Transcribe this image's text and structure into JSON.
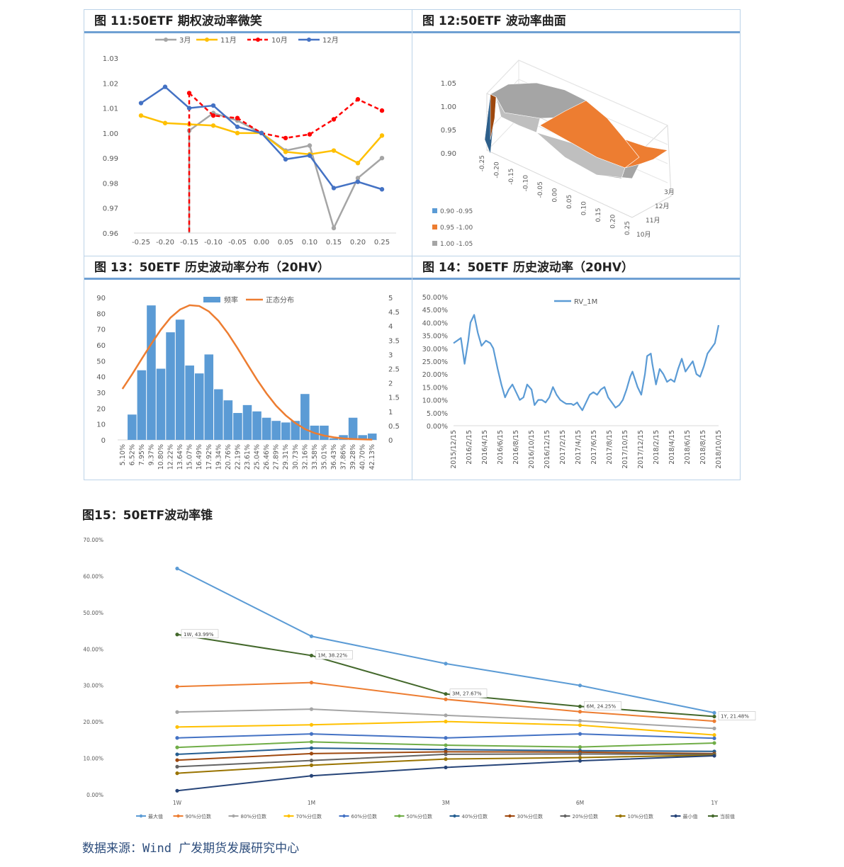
{
  "figure11": {
    "title": "图 11:50ETF 期权波动率微笑",
    "chart_data": {
      "type": "line",
      "x": [
        -0.25,
        -0.2,
        -0.15,
        -0.1,
        -0.05,
        0.0,
        0.05,
        0.1,
        0.15,
        0.2,
        0.25
      ],
      "x_tick_labels": [
        "-0.25",
        "-0.20",
        "-0.15",
        "-0.10",
        "-0.05",
        "0.00",
        "0.05",
        "0.10",
        "0.15",
        "0.20",
        "0.25"
      ],
      "ylim": [
        0.96,
        1.03
      ],
      "y_tick_labels": [
        "0.96",
        "0.97",
        "0.98",
        "0.99",
        "1.00",
        "1.01",
        "1.02",
        "1.03"
      ],
      "series": [
        {
          "name": "3月",
          "color": "#a5a5a5",
          "dash": false,
          "values": [
            null,
            null,
            1.001,
            1.008,
            1.005,
            1.0,
            0.993,
            0.995,
            0.962,
            0.982,
            0.99
          ]
        },
        {
          "name": "11月",
          "color": "#ffc000",
          "dash": false,
          "values": [
            1.007,
            1.004,
            1.0035,
            1.003,
            1.0,
            1.0,
            0.9925,
            0.9915,
            0.993,
            0.988,
            0.999
          ]
        },
        {
          "name": "10月",
          "color": "#ff0000",
          "dash": true,
          "values": [
            null,
            null,
            1.016,
            1.007,
            1.006,
            1.0,
            0.998,
            0.9995,
            1.0055,
            1.0135,
            1.009
          ]
        },
        {
          "name": "12月",
          "color": "#4472c4",
          "dash": false,
          "values": [
            1.012,
            1.0185,
            1.01,
            1.011,
            1.0025,
            1.0,
            0.9895,
            0.991,
            0.978,
            0.9805,
            0.9775
          ]
        }
      ]
    }
  },
  "figure12": {
    "title": "图 12:50ETF 波动率曲面",
    "chart_data": {
      "type": "surface",
      "z_tick_labels": [
        "1.05",
        "1.00",
        "0.95",
        "0.90"
      ],
      "x_tick_labels": [
        "-0.25",
        "-0.20",
        "-0.15",
        "-0.10",
        "-0.05",
        "0.00",
        "0.05",
        "0.10",
        "0.15",
        "0.20",
        "0.25"
      ],
      "y_tick_labels": [
        "3月",
        "12月",
        "11月",
        "10月"
      ],
      "legend": [
        {
          "label": "0.90 -0.95",
          "color": "#5b9bd5"
        },
        {
          "label": "0.95 -1.00",
          "color": "#ed7d31"
        },
        {
          "label": "1.00 -1.05",
          "color": "#a5a5a5"
        }
      ]
    }
  },
  "figure13": {
    "title": "图 13：50ETF 历史波动率分布（20HV）",
    "chart_data": {
      "type": "bar",
      "categories": [
        "5.10%",
        "6.52%",
        "7.95%",
        "9.37%",
        "10.80%",
        "12.22%",
        "13.64%",
        "15.07%",
        "16.49%",
        "17.92%",
        "19.34%",
        "20.76%",
        "22.19%",
        "23.61%",
        "25.04%",
        "26.46%",
        "27.89%",
        "29.31%",
        "30.73%",
        "32.16%",
        "33.58%",
        "35.01%",
        "36.43%",
        "37.86%",
        "39.28%",
        "40.70%",
        "42.13%"
      ],
      "series": [
        {
          "name": "频率",
          "axis": "left",
          "color": "#5b9bd5",
          "values": [
            0,
            16,
            44,
            85,
            45,
            68,
            76,
            47,
            42,
            54,
            32,
            25,
            17,
            22,
            18,
            14,
            12,
            11,
            12,
            29,
            9,
            9,
            1,
            3,
            14,
            3,
            4
          ]
        },
        {
          "name": "正态分布",
          "axis": "right",
          "color": "#ed7d31",
          "values": [
            1.79,
            2.3,
            2.84,
            3.37,
            3.87,
            4.29,
            4.58,
            4.73,
            4.7,
            4.51,
            4.18,
            3.73,
            3.21,
            2.66,
            2.12,
            1.63,
            1.2,
            0.86,
            0.59,
            0.38,
            0.24,
            0.15,
            0.09,
            0.05,
            0.03,
            0.02,
            0.01
          ]
        }
      ],
      "ylim_left": [
        0,
        90
      ],
      "ylim_right": [
        0,
        5
      ],
      "y_left_tick_labels": [
        "0",
        "10",
        "20",
        "30",
        "40",
        "50",
        "60",
        "70",
        "80",
        "90"
      ],
      "y_right_tick_labels": [
        "0",
        "0.5",
        "1",
        "1.5",
        "2",
        "2.5",
        "3",
        "3.5",
        "4",
        "4.5",
        "5"
      ]
    }
  },
  "figure14": {
    "title": "图 14：50ETF 历史波动率（20HV）",
    "chart_data": {
      "type": "line",
      "series_name": "RV_1M",
      "color": "#5b9bd5",
      "ylim": [
        0,
        0.5
      ],
      "y_tick_labels": [
        "0.00%",
        "5.00%",
        "10.00%",
        "15.00%",
        "20.00%",
        "25.00%",
        "30.00%",
        "35.00%",
        "40.00%",
        "45.00%",
        "50.00%"
      ],
      "x_tick_labels": [
        "2015/12/15",
        "2016/2/15",
        "2016/4/15",
        "2016/6/15",
        "2016/8/15",
        "2016/10/15",
        "2016/12/15",
        "2017/2/15",
        "2017/4/15",
        "2017/6/15",
        "2017/8/15",
        "2017/10/15",
        "2017/12/15",
        "2018/2/15",
        "2018/4/15",
        "2018/6/15",
        "2018/8/15",
        "2018/10/15"
      ],
      "x_month_index": [
        0,
        1,
        1.5,
        2,
        2.3,
        2.8,
        3.3,
        3.8,
        4.4,
        5,
        5.4,
        6,
        6.5,
        7,
        7.5,
        8,
        8.5,
        9,
        9.5,
        10,
        10.6,
        11,
        11.5,
        12,
        12.5,
        13,
        13.5,
        14,
        14.5,
        15,
        15.3,
        16,
        16.3,
        16.8,
        17,
        17.5,
        18,
        18.5,
        19,
        19.5,
        20,
        20.5,
        21,
        21.5,
        22,
        22.5,
        23,
        23.5,
        24,
        24.3,
        25,
        25.5,
        26,
        26.3,
        26.8,
        27,
        27.5,
        28,
        28.5,
        29,
        29.5,
        30,
        30.5,
        31,
        31.5,
        32,
        32.5,
        33,
        33.5,
        34,
        34.5,
        35,
        35.5,
        36
      ],
      "values": [
        0.32,
        0.34,
        0.24,
        0.33,
        0.4,
        0.43,
        0.36,
        0.31,
        0.33,
        0.32,
        0.3,
        0.22,
        0.16,
        0.11,
        0.14,
        0.16,
        0.13,
        0.1,
        0.11,
        0.16,
        0.14,
        0.08,
        0.1,
        0.1,
        0.09,
        0.11,
        0.15,
        0.12,
        0.1,
        0.09,
        0.085,
        0.085,
        0.08,
        0.09,
        0.08,
        0.06,
        0.09,
        0.12,
        0.13,
        0.12,
        0.14,
        0.15,
        0.11,
        0.09,
        0.07,
        0.08,
        0.1,
        0.14,
        0.19,
        0.21,
        0.15,
        0.12,
        0.2,
        0.27,
        0.28,
        0.24,
        0.16,
        0.22,
        0.2,
        0.17,
        0.18,
        0.17,
        0.22,
        0.26,
        0.21,
        0.23,
        0.25,
        0.2,
        0.19,
        0.23,
        0.28,
        0.3,
        0.32,
        0.39
      ]
    }
  },
  "figure15": {
    "title": "图15：50ETF波动率锥",
    "chart_data": {
      "type": "line",
      "categories": [
        "1W",
        "1M",
        "3M",
        "6M",
        "1Y"
      ],
      "ylim": [
        0,
        0.7
      ],
      "y_tick_labels": [
        "0.00%",
        "10.00%",
        "20.00%",
        "30.00%",
        "40.00%",
        "50.00%",
        "60.00%",
        "70.00%"
      ],
      "series": [
        {
          "name": "最大值",
          "color": "#5b9bd5",
          "values": [
            0.621,
            0.435,
            0.36,
            0.3,
            0.225
          ]
        },
        {
          "name": "90%分位数",
          "color": "#ed7d31",
          "values": [
            0.297,
            0.308,
            0.262,
            0.228,
            0.202
          ]
        },
        {
          "name": "80%分位数",
          "color": "#a5a5a5",
          "values": [
            0.227,
            0.235,
            0.218,
            0.203,
            0.182
          ]
        },
        {
          "name": "70%分位数",
          "color": "#ffc000",
          "values": [
            0.186,
            0.192,
            0.201,
            0.191,
            0.164
          ]
        },
        {
          "name": "60%分位数",
          "color": "#4472c4",
          "values": [
            0.156,
            0.167,
            0.156,
            0.167,
            0.155
          ]
        },
        {
          "name": "50%分位数",
          "color": "#70ad47",
          "values": [
            0.13,
            0.145,
            0.136,
            0.131,
            0.142
          ]
        },
        {
          "name": "40%分位数",
          "color": "#255e91",
          "values": [
            0.111,
            0.128,
            0.124,
            0.121,
            0.119
          ]
        },
        {
          "name": "30%分位数",
          "color": "#9e480e",
          "values": [
            0.095,
            0.113,
            0.118,
            0.117,
            0.113
          ]
        },
        {
          "name": "20%分位数",
          "color": "#636363",
          "values": [
            0.077,
            0.094,
            0.111,
            0.112,
            0.111
          ]
        },
        {
          "name": "10%分位数",
          "color": "#997300",
          "values": [
            0.059,
            0.081,
            0.098,
            0.102,
            0.109
          ]
        },
        {
          "name": "最小值",
          "color": "#264478",
          "values": [
            0.011,
            0.052,
            0.075,
            0.093,
            0.107
          ]
        },
        {
          "name": "当前值",
          "color": "#43682b",
          "values": [
            0.4399,
            0.3822,
            0.2767,
            0.2425,
            0.2148
          ]
        }
      ],
      "data_labels": [
        "1W, 43.99%",
        "1M, 38.22%",
        "3M, 27.67%",
        "6M, 24.25%",
        "1Y, 21.48%"
      ]
    }
  },
  "source": "数据来源：Wind 广发期货发展研究中心"
}
